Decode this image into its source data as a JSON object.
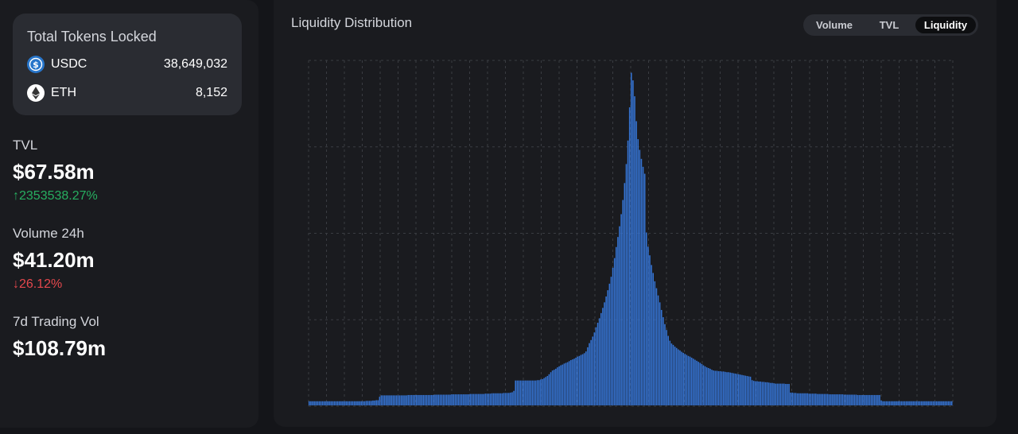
{
  "tokens_locked": {
    "title": "Total Tokens Locked",
    "tokens": [
      {
        "symbol": "USDC",
        "amount": "38,649,032",
        "icon": "usdc-icon",
        "color": "#2775ca"
      },
      {
        "symbol": "ETH",
        "amount": "8,152",
        "icon": "eth-icon",
        "color": "#ffffff"
      }
    ]
  },
  "stats": [
    {
      "label": "TVL",
      "value": "$67.58m",
      "change": "↑2353538.27%",
      "direction": "up"
    },
    {
      "label": "Volume 24h",
      "value": "$41.20m",
      "change": "↓26.12%",
      "direction": "down"
    },
    {
      "label": "7d Trading Vol",
      "value": "$108.79m",
      "change": "",
      "direction": ""
    }
  ],
  "chart": {
    "title": "Liquidity Distribution",
    "tabs": [
      {
        "label": "Volume",
        "active": false
      },
      {
        "label": "TVL",
        "active": false
      },
      {
        "label": "Liquidity",
        "active": true
      }
    ]
  },
  "colors": {
    "bar": "#3574d4",
    "up": "#27ae60",
    "down": "#e5484d",
    "grid": "#3a3c42"
  },
  "chart_data": {
    "type": "bar",
    "title": "Liquidity Distribution",
    "xlabel": "",
    "ylabel": "",
    "grid": true,
    "ylim": [
      0,
      100
    ],
    "values": [
      1.2,
      1.2,
      1.2,
      1.2,
      1.2,
      1.2,
      1.2,
      1.2,
      1.2,
      1.2,
      1.2,
      1.2,
      1.2,
      1.2,
      1.2,
      1.2,
      1.2,
      1.2,
      1.2,
      1.2,
      1.2,
      1.2,
      1.2,
      1.2,
      1.2,
      1.2,
      1.2,
      1.2,
      1.2,
      1.2,
      1.2,
      1.2,
      1.2,
      1.2,
      1.3,
      1.3,
      1.3,
      1.3,
      1.4,
      1.4,
      1.5,
      1.5,
      2.5,
      2.9,
      2.9,
      2.9,
      2.9,
      2.9,
      2.9,
      2.9,
      2.9,
      2.9,
      2.9,
      2.9,
      2.9,
      2.9,
      2.9,
      2.9,
      2.9,
      3.0,
      3.0,
      3.0,
      3.0,
      3.0,
      3.0,
      3.0,
      3.0,
      3.0,
      3.0,
      3.0,
      3.0,
      3.0,
      3.0,
      3.0,
      3.0,
      3.1,
      3.1,
      3.1,
      3.1,
      3.1,
      3.1,
      3.1,
      3.1,
      3.1,
      3.1,
      3.2,
      3.2,
      3.2,
      3.2,
      3.2,
      3.2,
      3.2,
      3.2,
      3.2,
      3.2,
      3.2,
      3.3,
      3.3,
      3.3,
      3.3,
      3.3,
      3.3,
      3.3,
      3.3,
      3.3,
      3.4,
      3.4,
      3.4,
      3.4,
      3.5,
      3.5,
      3.5,
      3.5,
      3.5,
      3.5,
      3.5,
      3.6,
      3.6,
      3.6,
      3.6,
      3.7,
      3.8,
      4.2,
      7.2,
      7.2,
      7.2,
      7.2,
      7.2,
      7.2,
      7.2,
      7.2,
      7.2,
      7.2,
      7.2,
      7.2,
      7.2,
      7.3,
      7.3,
      7.5,
      7.6,
      7.9,
      8.2,
      8.5,
      9.0,
      9.6,
      10.1,
      10.3,
      10.6,
      11.0,
      11.3,
      11.6,
      11.8,
      12.1,
      12.3,
      12.5,
      12.8,
      13.1,
      13.3,
      13.5,
      13.8,
      14.1,
      14.3,
      14.6,
      14.8,
      15.1,
      15.6,
      16.8,
      18.0,
      18.9,
      19.9,
      21.1,
      22.6,
      23.9,
      25.2,
      26.7,
      28.2,
      29.8,
      31.5,
      33.3,
      35.2,
      37.2,
      39.8,
      42.6,
      45.8,
      48.7,
      51.8,
      55.3,
      59.4,
      64.3,
      69.8,
      76.6,
      86.2,
      96.2,
      94.0,
      89.4,
      82.2,
      77.0,
      73.9,
      71.3,
      69.0,
      67.0,
      50.0,
      45.9,
      43.4,
      40.6,
      38.3,
      35.9,
      33.9,
      31.8,
      29.8,
      27.6,
      25.5,
      23.5,
      21.8,
      20.1,
      18.7,
      17.9,
      17.5,
      17.0,
      16.6,
      16.2,
      15.9,
      15.5,
      15.2,
      14.9,
      14.6,
      14.3,
      14.1,
      13.8,
      13.5,
      13.2,
      12.9,
      12.6,
      12.3,
      12.0,
      11.6,
      11.3,
      11.0,
      10.8,
      10.6,
      10.3,
      10.1,
      10.0,
      10.0,
      9.9,
      9.9,
      9.8,
      9.8,
      9.7,
      9.6,
      9.6,
      9.5,
      9.4,
      9.3,
      9.2,
      9.1,
      9.0,
      8.9,
      8.8,
      8.7,
      8.6,
      8.5,
      8.4,
      8.3,
      7.3,
      7.1,
      7.0,
      7.0,
      6.9,
      6.9,
      6.8,
      6.8,
      6.7,
      6.7,
      6.6,
      6.5,
      6.5,
      6.4,
      6.3,
      6.3,
      6.3,
      6.3,
      6.3,
      6.3,
      6.2,
      6.2,
      6.2,
      3.7,
      3.7,
      3.6,
      3.6,
      3.5,
      3.5,
      3.5,
      3.5,
      3.5,
      3.5,
      3.5,
      3.4,
      3.4,
      3.4,
      3.4,
      3.4,
      3.3,
      3.3,
      3.3,
      3.3,
      3.3,
      3.3,
      3.3,
      3.2,
      3.2,
      3.2,
      3.2,
      3.2,
      3.2,
      3.2,
      3.2,
      3.2,
      3.1,
      3.1,
      3.1,
      3.1,
      3.1,
      3.1,
      3.1,
      3.1,
      3.0,
      3.0,
      3.0,
      3.0,
      3.0,
      3.0,
      3.0,
      3.0,
      3.0,
      3.0,
      3.0,
      3.0,
      3.0,
      3.0,
      1.4,
      1.2,
      1.2,
      1.2,
      1.2,
      1.2,
      1.2,
      1.2,
      1.2,
      1.2,
      1.2,
      1.2,
      1.2,
      1.2,
      1.2,
      1.2,
      1.2,
      1.2,
      1.2,
      1.2,
      1.2,
      1.2,
      1.2,
      1.2,
      1.2,
      1.2,
      1.2,
      1.2,
      1.2,
      1.2,
      1.2,
      1.2,
      1.2,
      1.2,
      1.2,
      1.2,
      1.2,
      1.2,
      1.2,
      1.2,
      1.2,
      1.2,
      1.2
    ]
  }
}
